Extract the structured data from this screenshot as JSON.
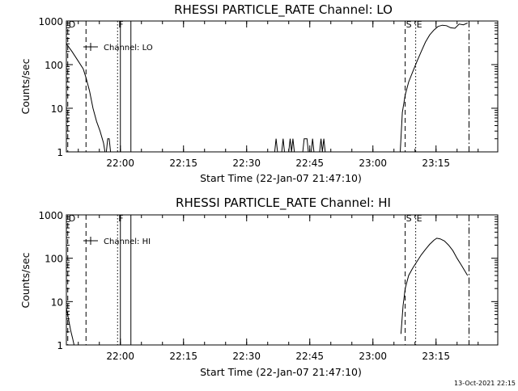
{
  "footer": {
    "timestamp": "13-Oct-2021 22:15"
  },
  "chart_data": [
    {
      "type": "line",
      "title": "RHESSI PARTICLE_RATE Channel: LO",
      "xlabel": "Start Time (22-Jan-07 21:47:10)",
      "ylabel": "Counts/sec",
      "legend": {
        "label": "Channel: LO",
        "placement": "top-left"
      },
      "y_scale": "log",
      "ylim": [
        1,
        1000
      ],
      "y_ticks": [
        1,
        10,
        100,
        1000
      ],
      "y_tick_labels": [
        "1",
        "10",
        "100",
        "1000"
      ],
      "xlim": [
        "21:47:10",
        "23:29:40"
      ],
      "x_ticks": [
        "22:00",
        "22:15",
        "22:30",
        "22:45",
        "23:00",
        "23:15"
      ],
      "markers": [
        {
          "label": "D",
          "time": "21:47:30",
          "style": "dashed"
        },
        {
          "label": "",
          "time": "21:51:50",
          "style": "dashed"
        },
        {
          "label": "F",
          "time": "21:59:20",
          "style": "dotted"
        },
        {
          "label": "",
          "time": "22:00:00",
          "style": "solid"
        },
        {
          "label": "",
          "time": "22:02:30",
          "style": "solid"
        },
        {
          "label": "S",
          "time": "23:07:40",
          "style": "dashed"
        },
        {
          "label": "E",
          "time": "23:10:10",
          "style": "dotted"
        },
        {
          "label": "",
          "time": "23:22:50",
          "style": "dashdot"
        }
      ],
      "series": [
        {
          "segments": [
            {
              "x": [
                "21:47:10",
                "21:48:30",
                "21:50:00",
                "21:51:10",
                "21:51:50",
                "21:52:40",
                "21:53:30",
                "21:54:20",
                "21:55:10",
                "21:56:00",
                "21:56:20"
              ],
              "y": [
                300,
                200,
                120,
                80,
                50,
                25,
                10,
                5,
                3,
                1.6,
                1
              ]
            },
            {
              "x": [
                "21:56:40",
                "21:57:00",
                "21:57:20",
                "21:57:40"
              ],
              "y": [
                1,
                2,
                2,
                1
              ]
            },
            {
              "x": [
                "22:36:40",
                "22:37:00",
                "22:37:20"
              ],
              "y": [
                1,
                2,
                1
              ]
            },
            {
              "x": [
                "22:38:20",
                "22:38:40",
                "22:39:00"
              ],
              "y": [
                1,
                2,
                1
              ]
            },
            {
              "x": [
                "22:40:00",
                "22:40:20",
                "22:40:40",
                "22:41:00",
                "22:41:20"
              ],
              "y": [
                1,
                2,
                1,
                2,
                1
              ]
            },
            {
              "x": [
                "22:43:20",
                "22:43:40",
                "22:44:20",
                "22:44:40"
              ],
              "y": [
                1,
                2,
                2,
                1
              ]
            },
            {
              "x": [
                "22:45:20",
                "22:45:40",
                "22:46:00"
              ],
              "y": [
                1,
                2,
                1
              ]
            },
            {
              "x": [
                "22:47:20",
                "22:47:40",
                "22:48:00",
                "22:48:20",
                "22:48:40"
              ],
              "y": [
                1,
                2,
                1,
                2,
                1
              ]
            },
            {
              "x": [
                "23:06:30",
                "23:07:00",
                "23:07:40",
                "23:08:30",
                "23:09:30",
                "23:10:30",
                "23:11:30",
                "23:12:30",
                "23:13:30",
                "23:14:30",
                "23:15:30",
                "23:16:30",
                "23:17:30",
                "23:18:30",
                "23:19:30",
                "23:20:30",
                "23:21:30",
                "23:22:30"
              ],
              "y": [
                1,
                8,
                20,
                40,
                70,
                120,
                200,
                330,
                480,
                620,
                750,
                800,
                780,
                700,
                680,
                850,
                820,
                900
              ]
            }
          ]
        }
      ]
    },
    {
      "type": "line",
      "title": "RHESSI PARTICLE_RATE Channel: HI",
      "xlabel": "Start Time (22-Jan-07 21:47:10)",
      "ylabel": "Counts/sec",
      "legend": {
        "label": "Channel: HI",
        "placement": "top-left"
      },
      "y_scale": "log",
      "ylim": [
        1,
        1000
      ],
      "y_ticks": [
        1,
        10,
        100,
        1000
      ],
      "y_tick_labels": [
        "1",
        "10",
        "100",
        "1000"
      ],
      "xlim": [
        "21:47:10",
        "23:29:40"
      ],
      "x_ticks": [
        "22:00",
        "22:15",
        "22:30",
        "22:45",
        "23:00",
        "23:15"
      ],
      "markers": [
        {
          "label": "D",
          "time": "21:47:30",
          "style": "dashed"
        },
        {
          "label": "",
          "time": "21:51:50",
          "style": "dashed"
        },
        {
          "label": "F",
          "time": "21:59:20",
          "style": "dotted"
        },
        {
          "label": "",
          "time": "22:00:00",
          "style": "solid"
        },
        {
          "label": "",
          "time": "22:02:30",
          "style": "solid"
        },
        {
          "label": "S",
          "time": "23:07:40",
          "style": "dashed"
        },
        {
          "label": "E",
          "time": "23:10:10",
          "style": "dotted"
        },
        {
          "label": "",
          "time": "23:22:50",
          "style": "dashdot"
        }
      ],
      "series": [
        {
          "segments": [
            {
              "x": [
                "21:47:10",
                "21:47:40",
                "21:48:10",
                "21:48:40",
                "21:49:00"
              ],
              "y": [
                7,
                4,
                2.2,
                1.4,
                1
              ]
            },
            {
              "x": [
                "23:06:40",
                "23:07:10",
                "23:07:40",
                "23:08:30",
                "23:09:30",
                "23:10:30",
                "23:11:30",
                "23:12:30",
                "23:13:30",
                "23:14:30",
                "23:15:10",
                "23:16:00",
                "23:17:00",
                "23:18:00",
                "23:19:00",
                "23:20:00",
                "23:21:00",
                "23:22:30"
              ],
              "y": [
                1.8,
                8,
                20,
                40,
                60,
                85,
                120,
                160,
                210,
                260,
                290,
                280,
                250,
                200,
                150,
                100,
                70,
                40
              ]
            }
          ]
        }
      ]
    }
  ]
}
